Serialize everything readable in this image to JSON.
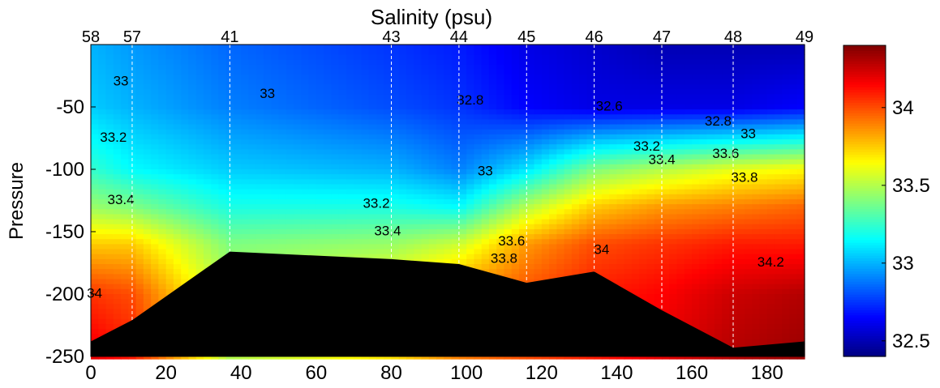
{
  "chart_data": {
    "type": "heatmap",
    "title": "Salinity (psu)",
    "xlabel": "",
    "ylabel": "Pressure",
    "xlim": [
      0,
      190
    ],
    "ylim": [
      -250,
      0
    ],
    "x_ticks": [
      0,
      20,
      40,
      60,
      80,
      100,
      120,
      140,
      160,
      180
    ],
    "y_ticks": [
      -50,
      -100,
      -150,
      -200,
      -250
    ],
    "stations": [
      {
        "label": "58",
        "x": 0
      },
      {
        "label": "57",
        "x": 11
      },
      {
        "label": "41",
        "x": 37
      },
      {
        "label": "43",
        "x": 80
      },
      {
        "label": "44",
        "x": 98
      },
      {
        "label": "45",
        "x": 116
      },
      {
        "label": "46",
        "x": 134
      },
      {
        "label": "47",
        "x": 152
      },
      {
        "label": "48",
        "x": 171
      },
      {
        "label": "49",
        "x": 190
      }
    ],
    "colorbar": {
      "range": [
        32.4,
        34.4
      ],
      "ticks": [
        32.5,
        33,
        33.5,
        34
      ],
      "colormap": "jet"
    },
    "contour_labels": [
      {
        "text": "33",
        "x": 8,
        "y": -30
      },
      {
        "text": "33",
        "x": 47,
        "y": -40
      },
      {
        "text": "32.8",
        "x": 101,
        "y": -45
      },
      {
        "text": "32.6",
        "x": 138,
        "y": -50
      },
      {
        "text": "32.8",
        "x": 167,
        "y": -62
      },
      {
        "text": "33",
        "x": 175,
        "y": -72
      },
      {
        "text": "33.2",
        "x": 6,
        "y": -75
      },
      {
        "text": "33.2",
        "x": 148,
        "y": -82
      },
      {
        "text": "33.4",
        "x": 152,
        "y": -93
      },
      {
        "text": "33.6",
        "x": 169,
        "y": -88
      },
      {
        "text": "33.8",
        "x": 174,
        "y": -107
      },
      {
        "text": "33",
        "x": 105,
        "y": -102
      },
      {
        "text": "33.2",
        "x": 76,
        "y": -128
      },
      {
        "text": "33.4",
        "x": 8,
        "y": -125
      },
      {
        "text": "33.4",
        "x": 79,
        "y": -150
      },
      {
        "text": "33.6",
        "x": 112,
        "y": -158
      },
      {
        "text": "33.8",
        "x": 110,
        "y": -172
      },
      {
        "text": "34",
        "x": 136,
        "y": -165
      },
      {
        "text": "34.2",
        "x": 181,
        "y": -175
      },
      {
        "text": "34",
        "x": 1,
        "y": -200
      }
    ],
    "bathymetry": [
      [
        0,
        -238
      ],
      [
        11,
        -221
      ],
      [
        37,
        -166
      ],
      [
        80,
        -172
      ],
      [
        98,
        -176
      ],
      [
        116,
        -191
      ],
      [
        134,
        -182
      ],
      [
        152,
        -213
      ],
      [
        171,
        -243
      ],
      [
        190,
        -238
      ]
    ],
    "salinity_profiles": [
      {
        "x": 0,
        "depths": [
          0,
          -50,
          -100,
          -130,
          -160,
          -200,
          -250
        ],
        "values": [
          33.0,
          33.05,
          33.25,
          33.45,
          33.75,
          34.05,
          34.2
        ]
      },
      {
        "x": 11,
        "depths": [
          0,
          -50,
          -100,
          -130,
          -160,
          -200,
          -250
        ],
        "values": [
          32.95,
          33.0,
          33.15,
          33.4,
          33.75,
          34.0,
          34.1
        ]
      },
      {
        "x": 37,
        "depths": [
          0,
          -50,
          -100,
          -130,
          -160,
          -200,
          -250
        ],
        "values": [
          32.85,
          32.9,
          33.05,
          33.2,
          33.4,
          33.5,
          33.5
        ]
      },
      {
        "x": 80,
        "depths": [
          0,
          -50,
          -100,
          -130,
          -160,
          -200,
          -250
        ],
        "values": [
          32.75,
          32.8,
          33.0,
          33.2,
          33.45,
          33.7,
          33.7
        ]
      },
      {
        "x": 98,
        "depths": [
          0,
          -50,
          -100,
          -130,
          -160,
          -200,
          -250
        ],
        "values": [
          32.7,
          32.75,
          32.9,
          33.15,
          33.55,
          33.9,
          33.9
        ]
      },
      {
        "x": 116,
        "depths": [
          0,
          -50,
          -100,
          -130,
          -160,
          -200,
          -250
        ],
        "values": [
          32.6,
          32.65,
          33.1,
          33.5,
          33.85,
          34.0,
          34.0
        ]
      },
      {
        "x": 134,
        "depths": [
          0,
          -50,
          -100,
          -130,
          -160,
          -200,
          -250
        ],
        "values": [
          32.55,
          32.6,
          33.4,
          33.75,
          34.0,
          34.1,
          34.1
        ]
      },
      {
        "x": 152,
        "depths": [
          0,
          -50,
          -100,
          -130,
          -160,
          -200,
          -250
        ],
        "values": [
          32.5,
          32.6,
          33.5,
          33.85,
          34.05,
          34.15,
          34.2
        ]
      },
      {
        "x": 171,
        "depths": [
          0,
          -50,
          -100,
          -130,
          -160,
          -200,
          -250
        ],
        "values": [
          32.5,
          32.6,
          33.6,
          33.9,
          34.1,
          34.25,
          34.3
        ]
      },
      {
        "x": 190,
        "depths": [
          0,
          -50,
          -100,
          -130,
          -160,
          -200,
          -250
        ],
        "values": [
          32.5,
          32.65,
          33.65,
          33.95,
          34.1,
          34.3,
          34.35
        ]
      }
    ]
  }
}
